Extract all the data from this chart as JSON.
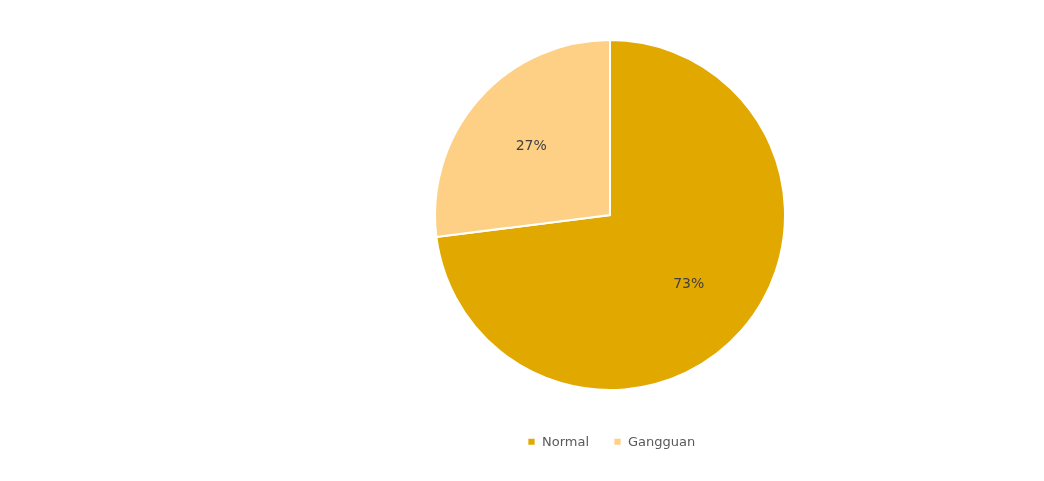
{
  "chart_data": {
    "type": "pie",
    "categories": [
      "Normal",
      "Gangguan"
    ],
    "values": [
      73,
      27
    ],
    "colors": [
      "#e1a800",
      "#fdd086"
    ],
    "value_labels": [
      "73%",
      "27%"
    ],
    "legend": "bottom"
  }
}
